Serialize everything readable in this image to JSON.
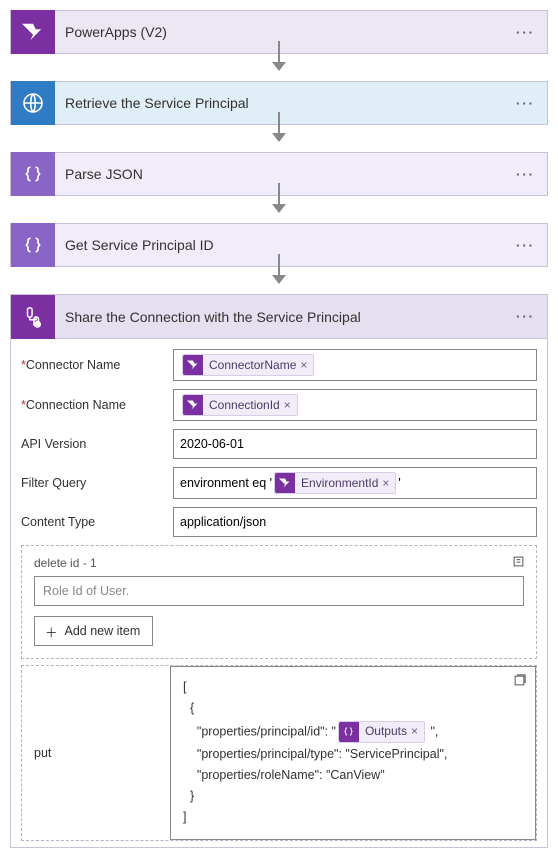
{
  "steps": [
    {
      "title": "PowerApps (V2)",
      "bg": "#ece7f3",
      "icon_bg": "#7b2fa0",
      "icon_type": "powerapps"
    },
    {
      "title": "Retrieve the Service Principal",
      "bg": "#dfeef7",
      "icon_bg": "#2f7bc4",
      "icon_type": "http"
    },
    {
      "title": "Parse JSON",
      "bg": "#f1ecf9",
      "icon_bg": "#8a64c6",
      "icon_type": "braces"
    },
    {
      "title": "Get Service Principal ID",
      "bg": "#f1ecf9",
      "icon_bg": "#8a64c6",
      "icon_type": "braces"
    }
  ],
  "expanded": {
    "title": "Share the Connection with the Service Principal",
    "header_bg": "#e6dff0",
    "icon_bg": "#7b2fa0"
  },
  "params": {
    "connector_name": {
      "label": "Connector Name",
      "required": true,
      "token": "ConnectorName"
    },
    "connection_name": {
      "label": "Connection Name",
      "required": true,
      "token": "ConnectionId"
    },
    "api_version": {
      "label": "API Version",
      "required": false,
      "value": "2020-06-01"
    },
    "filter_query": {
      "label": "Filter Query",
      "required": false,
      "prefix": "environment eq '",
      "token": "EnvironmentId",
      "suffix": "'"
    },
    "content_type": {
      "label": "Content Type",
      "required": false,
      "value": "application/json"
    }
  },
  "delete_panel": {
    "label": "delete id - 1",
    "placeholder": "Role Id of User.",
    "add_btn": "Add new item"
  },
  "put_panel": {
    "label": "put",
    "code_lines": [
      "[",
      "  {",
      "    \"properties/principal/id\": \"",
      "    \"properties/principal/type\": \"ServicePrincipal\",",
      "    \"properties/roleName\": \"CanView\"",
      "  }",
      "]"
    ],
    "token_label": "Outputs",
    "token_suffix": "\","
  }
}
